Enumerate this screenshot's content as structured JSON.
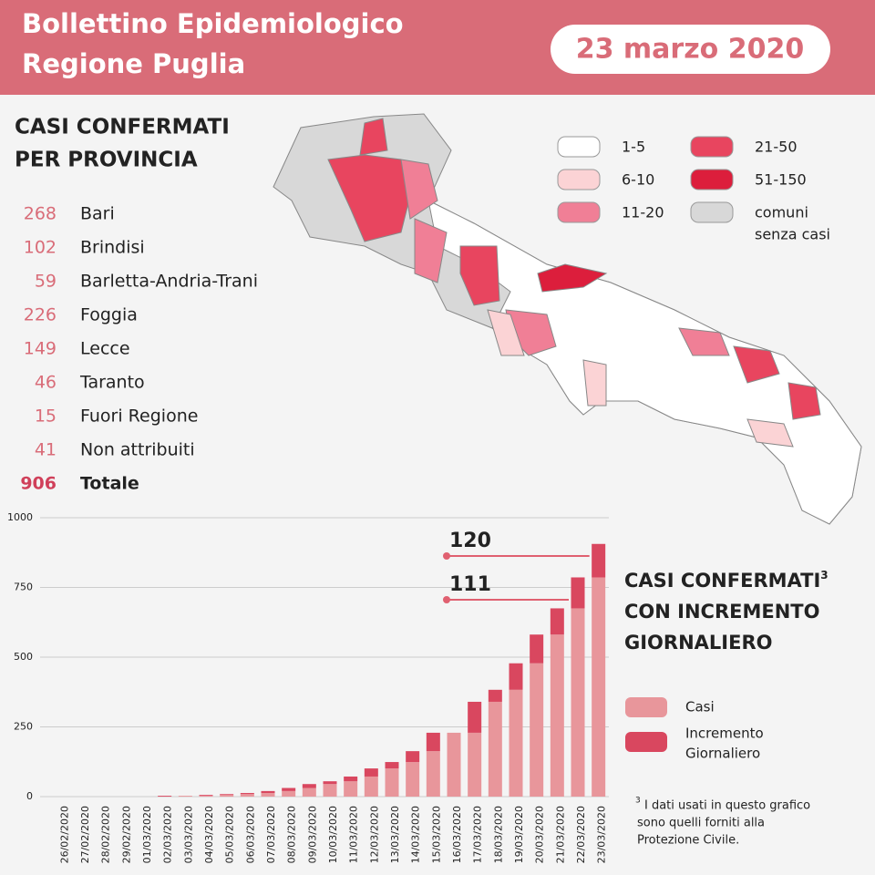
{
  "header": {
    "title_lines": [
      "Bollettino Epidemiologico",
      "Regione Puglia"
    ],
    "date": "23 marzo 2020"
  },
  "provinces": {
    "title_lines": [
      "CASI CONFERMATI",
      "PER PROVINCIA"
    ],
    "rows": [
      [
        "268",
        "Bari"
      ],
      [
        "102",
        "Brindisi"
      ],
      [
        "59",
        "Barletta-Andria-Trani"
      ],
      [
        "226",
        "Foggia"
      ],
      [
        "149",
        "Lecce"
      ],
      [
        "46",
        "Taranto"
      ],
      [
        "15",
        "Fuori Regione"
      ],
      [
        "41",
        "Non attribuiti"
      ]
    ],
    "total": [
      "906",
      "Totale"
    ]
  },
  "map_legend": {
    "items": [
      {
        "label": "1-5",
        "color": "#ffffff"
      },
      {
        "label": "6-10",
        "color": "#fbd3d5"
      },
      {
        "label": "11-20",
        "color": "#f07f96"
      },
      {
        "label": "21-50",
        "color": "#e8455f"
      },
      {
        "label": "51-150",
        "color": "#dc1e3c"
      },
      {
        "label_lines": [
          "comuni",
          "senza casi"
        ],
        "color": "#d8d8d8"
      }
    ]
  },
  "chart_data": {
    "type": "stacked_bar",
    "title_lines": [
      "CASI CONFERMATI",
      "CON INCREMENTO",
      "GIORNALIERO"
    ],
    "title_note": "3",
    "categories": [
      "26/02/2020",
      "27/02/2020",
      "28/02/2020",
      "29/02/2020",
      "01/03/2020",
      "02/03/2020",
      "03/03/2020",
      "04/03/2020",
      "05/03/2020",
      "06/03/2020",
      "07/03/2020",
      "08/03/2020",
      "09/03/2020",
      "10/03/2020",
      "11/03/2020",
      "12/03/2020",
      "13/03/2020",
      "14/03/2020",
      "15/03/2020",
      "16/03/2020",
      "17/03/2020",
      "18/03/2020",
      "19/03/2020",
      "20/03/2020",
      "21/03/2020",
      "22/03/2020",
      "23/03/2020"
    ],
    "series": [
      {
        "name": "Casi",
        "color": "#e8969b",
        "values": [
          0,
          0,
          0,
          0,
          0,
          0,
          3,
          3,
          6,
          9,
          13,
          20,
          31,
          45,
          55,
          72,
          101,
          124,
          163,
          229,
          229,
          340,
          383,
          478,
          581,
          675,
          786
        ]
      },
      {
        "name_lines": [
          "Incremento",
          "Giornaliero"
        ],
        "color": "#d9475f",
        "values": [
          0,
          0,
          0,
          0,
          0,
          3,
          0,
          3,
          3,
          4,
          7,
          11,
          14,
          10,
          17,
          29,
          23,
          39,
          66,
          0,
          111,
          43,
          95,
          103,
          94,
          111,
          120
        ]
      }
    ],
    "labeled_points": [
      26,
      25
    ],
    "ylim": [
      0,
      1000
    ],
    "yticks": [
      0,
      250,
      500,
      750,
      1000
    ],
    "grid": true,
    "footnote": {
      "mark": "3",
      "lines": [
        "I dati usati in questo grafico",
        "sono quelli forniti alla",
        "Protezione Civile."
      ]
    }
  }
}
